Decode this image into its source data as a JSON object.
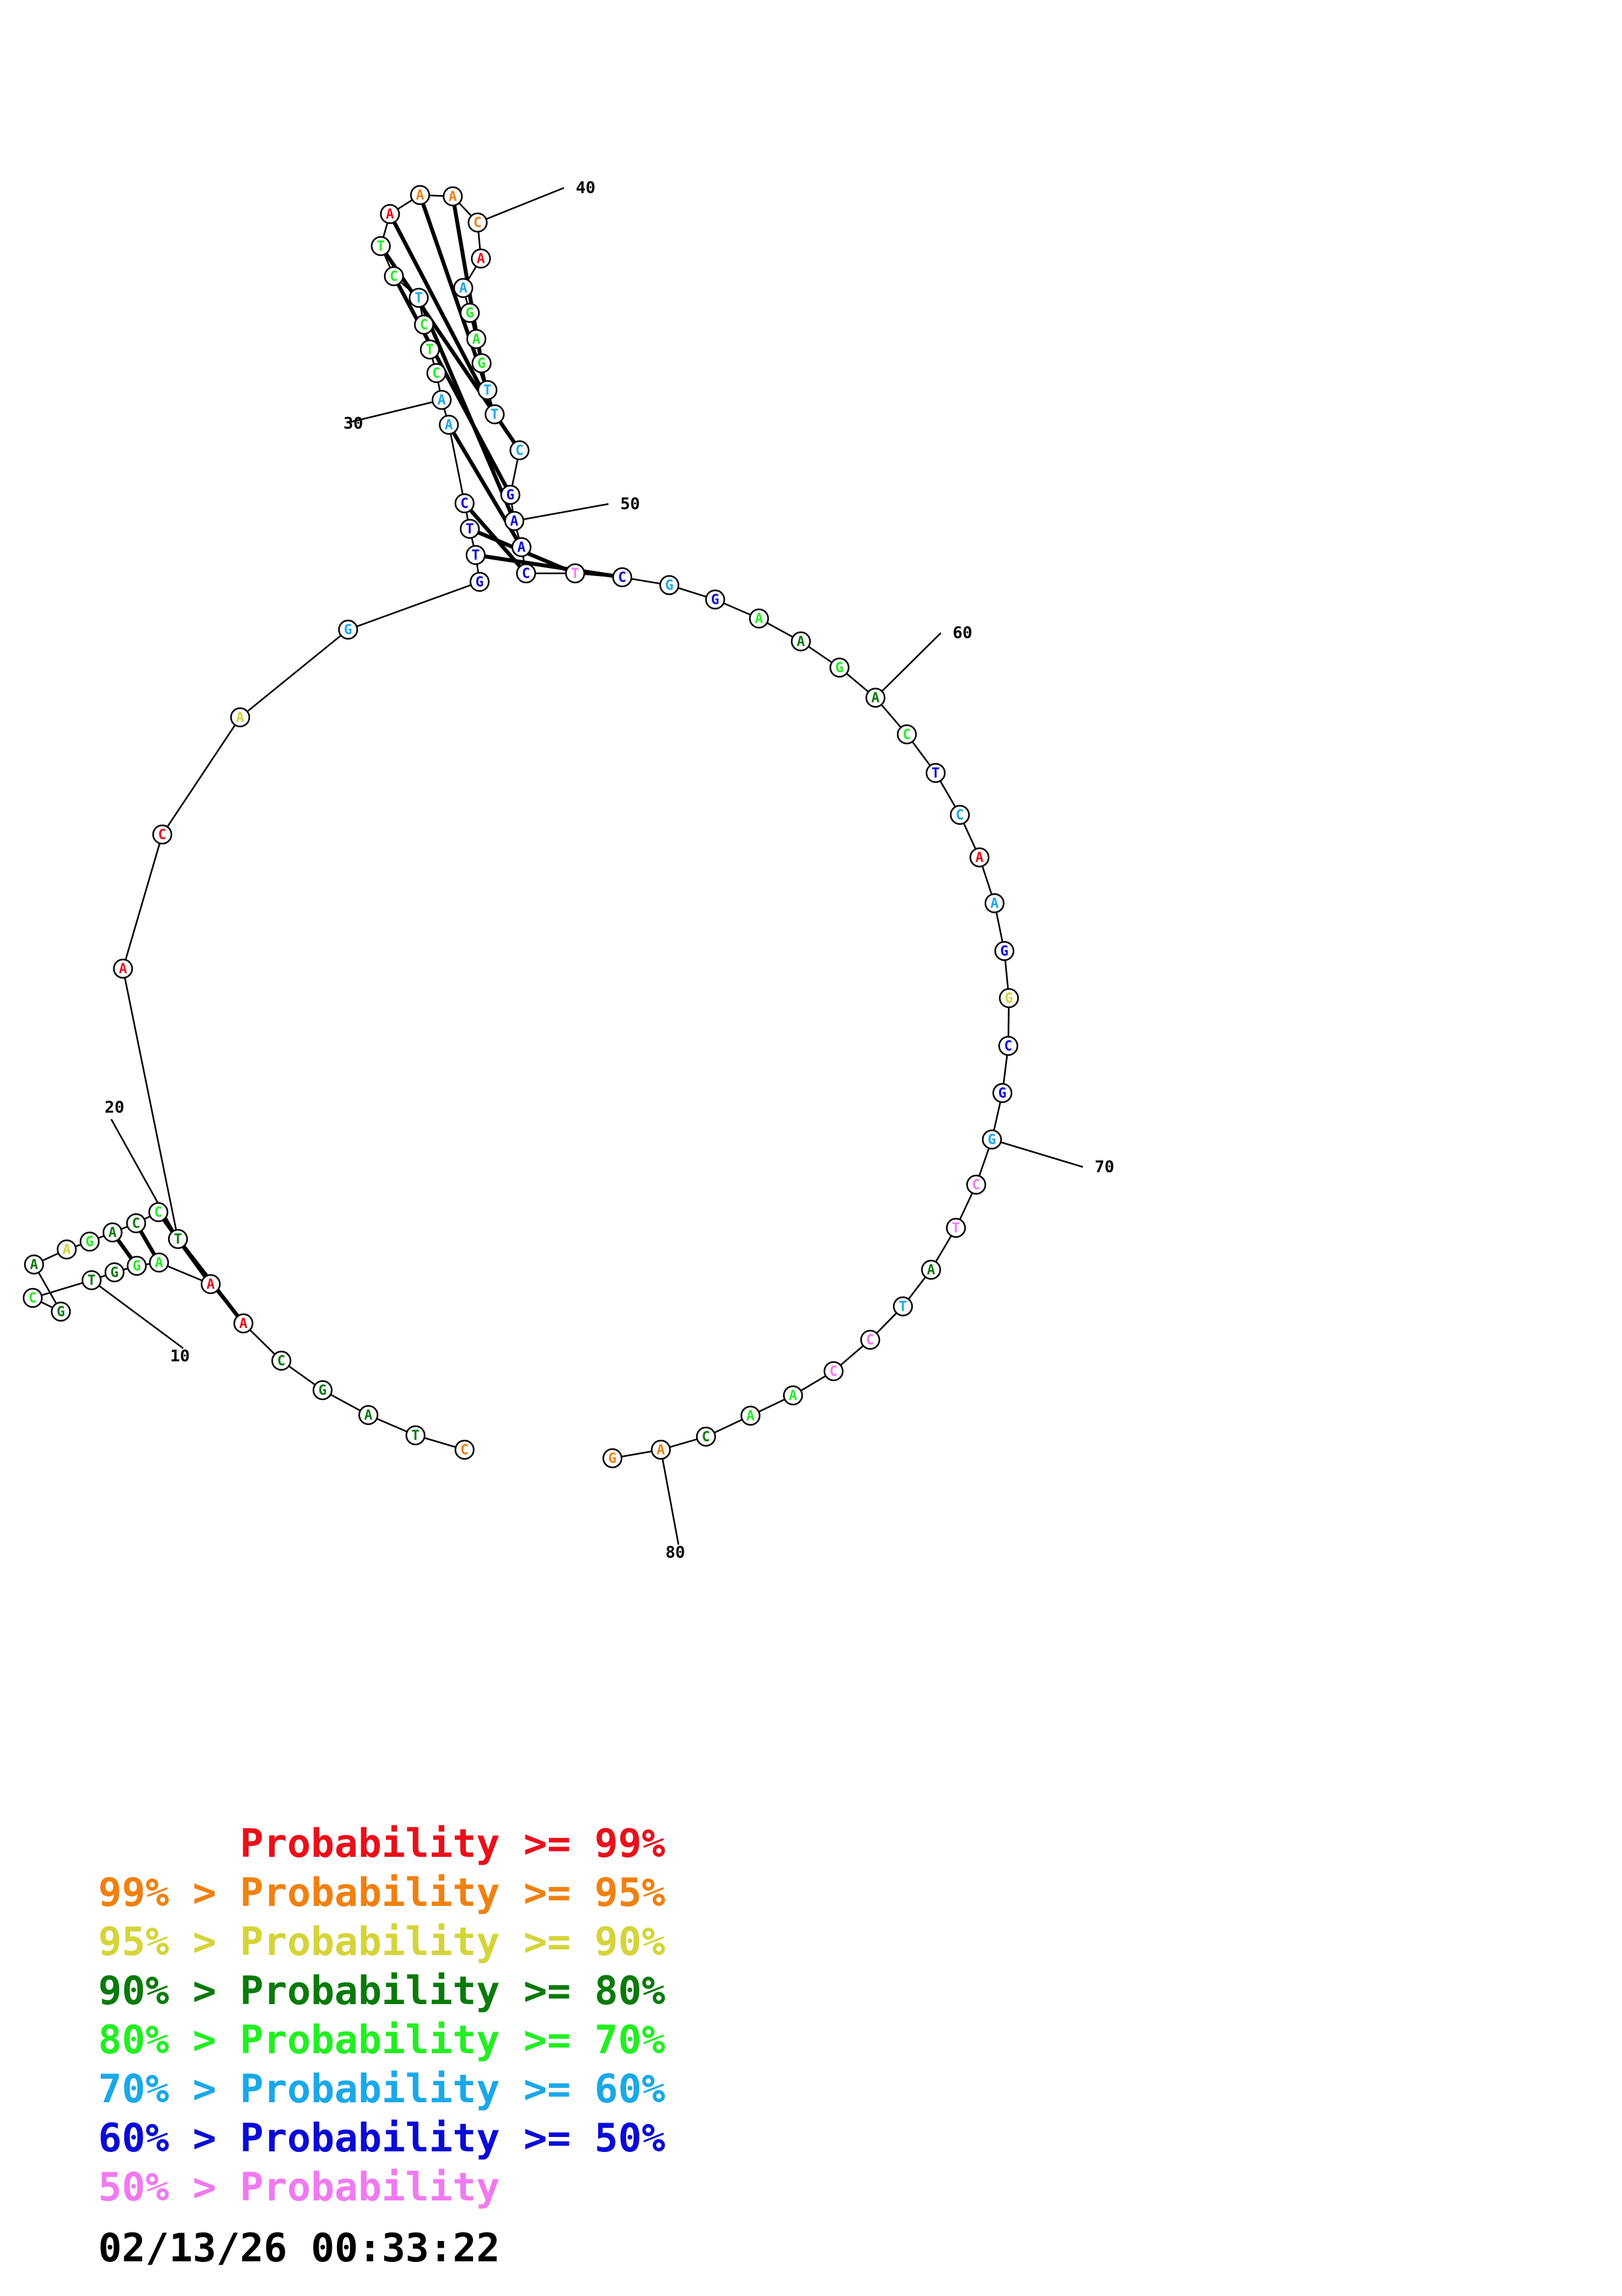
{
  "colors": {
    "p99": "#e8101a",
    "p95": "#f08010",
    "p90": "#d4d43a",
    "p80": "#0a7a0a",
    "p70": "#22ee22",
    "p60": "#1aa8e8",
    "p50": "#0a0ad6",
    "plow": "#f07af0"
  },
  "nucleotides": [
    {
      "n": 1,
      "base": "C",
      "c": "p95"
    },
    {
      "n": 2,
      "base": "T",
      "c": "p80"
    },
    {
      "n": 3,
      "base": "A",
      "c": "p80"
    },
    {
      "n": 4,
      "base": "G",
      "c": "p80"
    },
    {
      "n": 5,
      "base": "C",
      "c": "p80"
    },
    {
      "n": 6,
      "base": "A",
      "c": "p99"
    },
    {
      "n": 7,
      "base": "A",
      "c": "p99"
    },
    {
      "n": 8,
      "base": "A",
      "c": "p70"
    },
    {
      "n": 9,
      "base": "G",
      "c": "p70"
    },
    {
      "n": 10,
      "base": "G",
      "c": "p80"
    },
    {
      "n": 11,
      "base": "T",
      "c": "p80"
    },
    {
      "n": 12,
      "base": "C",
      "c": "p70"
    },
    {
      "n": 13,
      "base": "G",
      "c": "p80"
    },
    {
      "n": 14,
      "base": "A",
      "c": "p80"
    },
    {
      "n": 15,
      "base": "A",
      "c": "p90"
    },
    {
      "n": 16,
      "base": "G",
      "c": "p70"
    },
    {
      "n": 17,
      "base": "A",
      "c": "p80"
    },
    {
      "n": 18,
      "base": "C",
      "c": "p80"
    },
    {
      "n": 19,
      "base": "C",
      "c": "p70"
    },
    {
      "n": 20,
      "base": "T",
      "c": "p80"
    },
    {
      "n": 21,
      "base": "A",
      "c": "p99"
    },
    {
      "n": 22,
      "base": "C",
      "c": "p99"
    },
    {
      "n": 23,
      "base": "A",
      "c": "p90"
    },
    {
      "n": 24,
      "base": "G",
      "c": "p60"
    },
    {
      "n": 25,
      "base": "G",
      "c": "p50"
    },
    {
      "n": 26,
      "base": "T",
      "c": "p50"
    },
    {
      "n": 27,
      "base": "T",
      "c": "p50"
    },
    {
      "n": 28,
      "base": "C",
      "c": "p50"
    },
    {
      "n": 29,
      "base": "A",
      "c": "p60"
    },
    {
      "n": 30,
      "base": "A",
      "c": "p60"
    },
    {
      "n": 31,
      "base": "C",
      "c": "p70"
    },
    {
      "n": 32,
      "base": "T",
      "c": "p70"
    },
    {
      "n": 33,
      "base": "C",
      "c": "p70"
    },
    {
      "n": 34,
      "base": "T",
      "c": "p60"
    },
    {
      "n": 35,
      "base": "C",
      "c": "p70"
    },
    {
      "n": 36,
      "base": "T",
      "c": "p70"
    },
    {
      "n": 37,
      "base": "A",
      "c": "p99"
    },
    {
      "n": 38,
      "base": "A",
      "c": "p95"
    },
    {
      "n": 39,
      "base": "A",
      "c": "p95"
    },
    {
      "n": 40,
      "base": "C",
      "c": "p95"
    },
    {
      "n": 41,
      "base": "A",
      "c": "p99"
    },
    {
      "n": 42,
      "base": "A",
      "c": "p60"
    },
    {
      "n": 43,
      "base": "G",
      "c": "p70"
    },
    {
      "n": 44,
      "base": "A",
      "c": "p70"
    },
    {
      "n": 45,
      "base": "G",
      "c": "p70"
    },
    {
      "n": 46,
      "base": "T",
      "c": "p60"
    },
    {
      "n": 47,
      "base": "T",
      "c": "p60"
    },
    {
      "n": 48,
      "base": "C",
      "c": "p60"
    },
    {
      "n": 49,
      "base": "G",
      "c": "p50"
    },
    {
      "n": 50,
      "base": "A",
      "c": "p50"
    },
    {
      "n": 51,
      "base": "A",
      "c": "p50"
    },
    {
      "n": 52,
      "base": "C",
      "c": "p50"
    },
    {
      "n": 53,
      "base": "T",
      "c": "plow"
    },
    {
      "n": 54,
      "base": "C",
      "c": "p50"
    },
    {
      "n": 55,
      "base": "G",
      "c": "p60"
    },
    {
      "n": 56,
      "base": "G",
      "c": "p50"
    },
    {
      "n": 57,
      "base": "A",
      "c": "p70"
    },
    {
      "n": 58,
      "base": "A",
      "c": "p80"
    },
    {
      "n": 59,
      "base": "G",
      "c": "p70"
    },
    {
      "n": 60,
      "base": "A",
      "c": "p80"
    },
    {
      "n": 61,
      "base": "C",
      "c": "p70"
    },
    {
      "n": 62,
      "base": "T",
      "c": "p50"
    },
    {
      "n": 63,
      "base": "C",
      "c": "p60"
    },
    {
      "n": 64,
      "base": "A",
      "c": "p99"
    },
    {
      "n": 65,
      "base": "A",
      "c": "p60"
    },
    {
      "n": 66,
      "base": "G",
      "c": "p50"
    },
    {
      "n": 67,
      "base": "G",
      "c": "p90"
    },
    {
      "n": 68,
      "base": "C",
      "c": "p50"
    },
    {
      "n": 69,
      "base": "G",
      "c": "p50"
    },
    {
      "n": 70,
      "base": "G",
      "c": "p60"
    },
    {
      "n": 71,
      "base": "C",
      "c": "plow"
    },
    {
      "n": 72,
      "base": "T",
      "c": "plow"
    },
    {
      "n": 73,
      "base": "A",
      "c": "p80"
    },
    {
      "n": 74,
      "base": "T",
      "c": "p60"
    },
    {
      "n": 75,
      "base": "C",
      "c": "plow"
    },
    {
      "n": 76,
      "base": "C",
      "c": "plow"
    },
    {
      "n": 77,
      "base": "A",
      "c": "p70"
    },
    {
      "n": 78,
      "base": "A",
      "c": "p70"
    },
    {
      "n": 79,
      "base": "C",
      "c": "p80"
    },
    {
      "n": 80,
      "base": "A",
      "c": "p95"
    },
    {
      "n": 81,
      "base": "G",
      "c": "p95"
    }
  ],
  "pairs": [
    [
      6,
      20
    ],
    [
      7,
      19
    ],
    [
      8,
      18
    ],
    [
      9,
      17
    ],
    [
      26,
      54
    ],
    [
      27,
      53
    ],
    [
      28,
      52
    ],
    [
      29,
      51
    ],
    [
      34,
      50
    ],
    [
      35,
      49
    ],
    [
      36,
      48
    ],
    [
      37,
      47
    ],
    [
      38,
      46
    ],
    [
      39,
      45
    ]
  ],
  "index_labels": [
    "10",
    "20",
    "30",
    "40",
    "50",
    "60",
    "70",
    "80"
  ],
  "legend": [
    {
      "prefix": "",
      "label": "Probability >= 99%",
      "c": "p99"
    },
    {
      "prefix": "99% > ",
      "label": "Probability >= 95%",
      "c": "p95"
    },
    {
      "prefix": "95% > ",
      "label": "Probability >= 90%",
      "c": "p90"
    },
    {
      "prefix": "90% > ",
      "label": "Probability >= 80%",
      "c": "p80"
    },
    {
      "prefix": "80% > ",
      "label": "Probability >= 70%",
      "c": "p70"
    },
    {
      "prefix": "70% > ",
      "label": "Probability >= 60%",
      "c": "p60"
    },
    {
      "prefix": "60% > ",
      "label": "Probability >= 50%",
      "c": "p50"
    },
    {
      "prefix": "50% > ",
      "label": "Probability",
      "c": "plow"
    }
  ],
  "timestamp": "02/13/26 00:33:22"
}
